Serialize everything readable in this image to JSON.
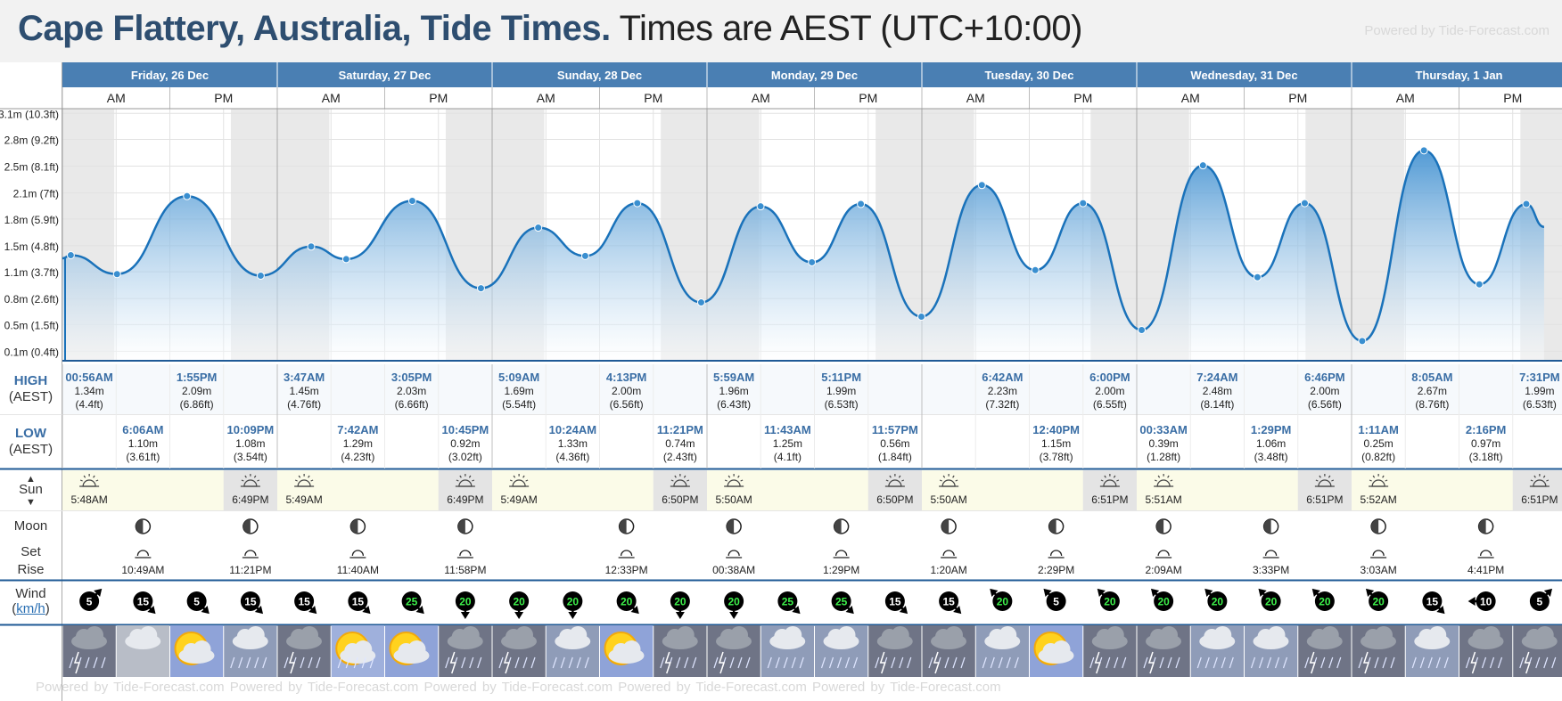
{
  "title": {
    "bold": "Cape Flattery, Australia, Tide Times.",
    "rest": "Times are AEST (UTC+10:00)"
  },
  "powered_by": "Powered by Tide-Forecast.com",
  "rows": {
    "high": "HIGH",
    "high_tz": "(AEST)",
    "low": "LOW",
    "low_tz": "(AEST)",
    "sun": "Sun",
    "moon": "Moon",
    "set": "Set",
    "rise": "Rise",
    "wind": "Wind",
    "wind_unit": "km/h"
  },
  "periods": [
    "AM",
    "PM"
  ],
  "days": [
    "Friday, 26 Dec",
    "Saturday, 27 Dec",
    "Sunday, 28 Dec",
    "Monday, 29 Dec",
    "Tuesday, 30 Dec",
    "Wednesday, 31 Dec",
    "Thursday, 1 Jan"
  ],
  "colors": {
    "day_header": "#4a7fb3",
    "tide_line": "#1a72ba",
    "tide_fill_top": "#3f8fd0",
    "night": "#e9e9e9",
    "sun_row": "#fbfbe8"
  },
  "chart_data": {
    "type": "area",
    "title": "Cape Flattery, Australia, Tide Times.",
    "ylabel": "",
    "y_ticks": [
      "0.1m (0.4ft)",
      "0.5m (1.5ft)",
      "0.8m (2.6ft)",
      "1.1m (3.7ft)",
      "1.5m (4.8ft)",
      "1.8m (5.9ft)",
      "2.1m (7ft)",
      "2.5m (8.1ft)",
      "2.8m (9.2ft)",
      "3.1m (10.3ft)"
    ],
    "y_tick_values": [
      0.12,
      0.46,
      0.79,
      1.13,
      1.46,
      1.8,
      2.13,
      2.47,
      2.81,
      3.14
    ],
    "ylim": [
      0,
      3.2
    ],
    "x_start": "2025-12-26 00:00",
    "x_end": "2026-01-01 21:30",
    "series": [
      {
        "points": [
          {
            "t": "2025-12-26 00:00",
            "v": 1.3
          },
          {
            "t": "2025-12-26 00:56",
            "v": 1.34
          },
          {
            "t": "2025-12-26 06:06",
            "v": 1.1
          },
          {
            "t": "2025-12-26 13:55",
            "v": 2.09
          },
          {
            "t": "2025-12-26 22:09",
            "v": 1.08
          },
          {
            "t": "2025-12-27 03:47",
            "v": 1.45
          },
          {
            "t": "2025-12-27 07:42",
            "v": 1.29
          },
          {
            "t": "2025-12-27 15:05",
            "v": 2.03
          },
          {
            "t": "2025-12-27 22:45",
            "v": 0.92
          },
          {
            "t": "2025-12-28 05:09",
            "v": 1.69
          },
          {
            "t": "2025-12-28 10:24",
            "v": 1.33
          },
          {
            "t": "2025-12-28 16:13",
            "v": 2.0
          },
          {
            "t": "2025-12-28 23:21",
            "v": 0.74
          },
          {
            "t": "2025-12-29 05:59",
            "v": 1.96
          },
          {
            "t": "2025-12-29 11:43",
            "v": 1.25
          },
          {
            "t": "2025-12-29 17:11",
            "v": 1.99
          },
          {
            "t": "2025-12-29 23:57",
            "v": 0.56
          },
          {
            "t": "2025-12-30 06:42",
            "v": 2.23
          },
          {
            "t": "2025-12-30 12:40",
            "v": 1.15
          },
          {
            "t": "2025-12-30 18:00",
            "v": 2.0
          },
          {
            "t": "2025-12-31 00:33",
            "v": 0.39
          },
          {
            "t": "2025-12-31 07:24",
            "v": 2.48
          },
          {
            "t": "2025-12-31 13:29",
            "v": 1.06
          },
          {
            "t": "2025-12-31 18:46",
            "v": 2.0
          },
          {
            "t": "2026-01-01 01:11",
            "v": 0.25
          },
          {
            "t": "2026-01-01 08:05",
            "v": 2.67
          },
          {
            "t": "2026-01-01 14:16",
            "v": 0.97
          },
          {
            "t": "2026-01-01 19:31",
            "v": 1.99
          },
          {
            "t": "2026-01-01 21:30",
            "v": 1.7
          }
        ]
      }
    ],
    "sunrise_sunset": [
      {
        "rise": "2025-12-26 05:48",
        "set": "2025-12-26 18:49"
      },
      {
        "rise": "2025-12-27 05:49",
        "set": "2025-12-27 18:49"
      },
      {
        "rise": "2025-12-28 05:49",
        "set": "2025-12-28 18:50"
      },
      {
        "rise": "2025-12-29 05:50",
        "set": "2025-12-29 18:50"
      },
      {
        "rise": "2025-12-30 05:50",
        "set": "2025-12-30 18:51"
      },
      {
        "rise": "2025-12-31 05:51",
        "set": "2025-12-31 18:51"
      },
      {
        "rise": "2026-01-01 05:52",
        "set": "2026-01-01 18:51"
      }
    ]
  },
  "high_tides": [
    {
      "col": 0,
      "time": "00:56AM",
      "m": "1.34m",
      "ft": "(4.4ft)"
    },
    {
      "col": 2,
      "time": "1:55PM",
      "m": "2.09m",
      "ft": "(6.86ft)"
    },
    {
      "col": 4,
      "time": "3:47AM",
      "m": "1.45m",
      "ft": "(4.76ft)"
    },
    {
      "col": 6,
      "time": "3:05PM",
      "m": "2.03m",
      "ft": "(6.66ft)"
    },
    {
      "col": 8,
      "time": "5:09AM",
      "m": "1.69m",
      "ft": "(5.54ft)"
    },
    {
      "col": 10,
      "time": "4:13PM",
      "m": "2.00m",
      "ft": "(6.56ft)"
    },
    {
      "col": 12,
      "time": "5:59AM",
      "m": "1.96m",
      "ft": "(6.43ft)"
    },
    {
      "col": 14,
      "time": "5:11PM",
      "m": "1.99m",
      "ft": "(6.53ft)"
    },
    {
      "col": 17,
      "time": "6:42AM",
      "m": "2.23m",
      "ft": "(7.32ft)"
    },
    {
      "col": 19,
      "time": "6:00PM",
      "m": "2.00m",
      "ft": "(6.55ft)"
    },
    {
      "col": 21,
      "time": "7:24AM",
      "m": "2.48m",
      "ft": "(8.14ft)"
    },
    {
      "col": 23,
      "time": "6:46PM",
      "m": "2.00m",
      "ft": "(6.56ft)"
    },
    {
      "col": 25,
      "time": "8:05AM",
      "m": "2.67m",
      "ft": "(8.76ft)"
    },
    {
      "col": 27,
      "time": "7:31PM",
      "m": "1.99m",
      "ft": "(6.53ft)"
    }
  ],
  "low_tides": [
    {
      "col": 1,
      "time": "6:06AM",
      "m": "1.10m",
      "ft": "(3.61ft)"
    },
    {
      "col": 3,
      "time": "10:09PM",
      "m": "1.08m",
      "ft": "(3.54ft)"
    },
    {
      "col": 5,
      "time": "7:42AM",
      "m": "1.29m",
      "ft": "(4.23ft)"
    },
    {
      "col": 7,
      "time": "10:45PM",
      "m": "0.92m",
      "ft": "(3.02ft)"
    },
    {
      "col": 9,
      "time": "10:24AM",
      "m": "1.33m",
      "ft": "(4.36ft)"
    },
    {
      "col": 11,
      "time": "11:21PM",
      "m": "0.74m",
      "ft": "(2.43ft)"
    },
    {
      "col": 13,
      "time": "11:43AM",
      "m": "1.25m",
      "ft": "(4.1ft)"
    },
    {
      "col": 15,
      "time": "11:57PM",
      "m": "0.56m",
      "ft": "(1.84ft)"
    },
    {
      "col": 18,
      "time": "12:40PM",
      "m": "1.15m",
      "ft": "(3.78ft)"
    },
    {
      "col": 20,
      "time": "00:33AM",
      "m": "0.39m",
      "ft": "(1.28ft)"
    },
    {
      "col": 22,
      "time": "1:29PM",
      "m": "1.06m",
      "ft": "(3.48ft)"
    },
    {
      "col": 24,
      "time": "1:11AM",
      "m": "0.25m",
      "ft": "(0.82ft)"
    },
    {
      "col": 26,
      "time": "2:16PM",
      "m": "0.97m",
      "ft": "(3.18ft)"
    }
  ],
  "sun_times": [
    {
      "col": 0,
      "kind": "rise",
      "time": "5:48AM"
    },
    {
      "col": 3,
      "kind": "set",
      "time": "6:49PM"
    },
    {
      "col": 4,
      "kind": "rise",
      "time": "5:49AM"
    },
    {
      "col": 7,
      "kind": "set",
      "time": "6:49PM"
    },
    {
      "col": 8,
      "kind": "rise",
      "time": "5:49AM"
    },
    {
      "col": 11,
      "kind": "set",
      "time": "6:50PM"
    },
    {
      "col": 12,
      "kind": "rise",
      "time": "5:50AM"
    },
    {
      "col": 15,
      "kind": "set",
      "time": "6:50PM"
    },
    {
      "col": 16,
      "kind": "rise",
      "time": "5:50AM"
    },
    {
      "col": 19,
      "kind": "set",
      "time": "6:51PM"
    },
    {
      "col": 20,
      "kind": "rise",
      "time": "5:51AM"
    },
    {
      "col": 23,
      "kind": "set",
      "time": "6:51PM"
    },
    {
      "col": 24,
      "kind": "rise",
      "time": "5:52AM"
    },
    {
      "col": 27,
      "kind": "set",
      "time": "6:51PM"
    }
  ],
  "moon": [
    {
      "col": 1,
      "kind": "set",
      "time": "10:49AM"
    },
    {
      "col": 3,
      "kind": "rise",
      "time": "11:21PM"
    },
    {
      "col": 5,
      "kind": "set",
      "time": "11:40AM"
    },
    {
      "col": 7,
      "kind": "rise",
      "time": "11:58PM"
    },
    {
      "col": 10,
      "kind": "set",
      "time": "12:33PM"
    },
    {
      "col": 12,
      "kind": "rise",
      "time": "00:38AM"
    },
    {
      "col": 14,
      "kind": "set",
      "time": "1:29PM"
    },
    {
      "col": 16,
      "kind": "rise",
      "time": "1:20AM"
    },
    {
      "col": 18,
      "kind": "set",
      "time": "2:29PM"
    },
    {
      "col": 20,
      "kind": "rise",
      "time": "2:09AM"
    },
    {
      "col": 22,
      "kind": "set",
      "time": "3:33PM"
    },
    {
      "col": 24,
      "kind": "rise",
      "time": "3:03AM"
    },
    {
      "col": 26,
      "kind": "set",
      "time": "4:41PM"
    }
  ],
  "wind": [
    {
      "speed": "5",
      "dir": "ne"
    },
    {
      "speed": "15",
      "dir": "se"
    },
    {
      "speed": "5",
      "dir": "se"
    },
    {
      "speed": "15",
      "dir": "se"
    },
    {
      "speed": "15",
      "dir": "se"
    },
    {
      "speed": "15",
      "dir": "se"
    },
    {
      "speed": "25",
      "dir": "se"
    },
    {
      "speed": "20",
      "dir": "s"
    },
    {
      "speed": "20",
      "dir": "s"
    },
    {
      "speed": "20",
      "dir": "s"
    },
    {
      "speed": "20",
      "dir": "se"
    },
    {
      "speed": "20",
      "dir": "s"
    },
    {
      "speed": "20",
      "dir": "s"
    },
    {
      "speed": "25",
      "dir": "se"
    },
    {
      "speed": "25",
      "dir": "se"
    },
    {
      "speed": "15",
      "dir": "se"
    },
    {
      "speed": "15",
      "dir": "se"
    },
    {
      "speed": "20",
      "dir": "nw"
    },
    {
      "speed": "5",
      "dir": "nw"
    },
    {
      "speed": "20",
      "dir": "nw"
    },
    {
      "speed": "20",
      "dir": "nw"
    },
    {
      "speed": "20",
      "dir": "nw"
    },
    {
      "speed": "20",
      "dir": "nw"
    },
    {
      "speed": "20",
      "dir": "nw"
    },
    {
      "speed": "20",
      "dir": "nw"
    },
    {
      "speed": "15",
      "dir": "se"
    },
    {
      "speed": "10",
      "dir": "w"
    },
    {
      "speed": "5",
      "dir": "ne"
    }
  ],
  "weather": [
    "storm",
    "cloud",
    "sunny",
    "rain",
    "storm",
    "partly",
    "sunny",
    "storm",
    "storm",
    "rain",
    "sunny",
    "storm",
    "storm",
    "rain",
    "rain",
    "storm",
    "storm",
    "rain",
    "sunny",
    "storm",
    "storm",
    "rain",
    "rain",
    "storm",
    "storm",
    "rain",
    "storm",
    "storm"
  ]
}
